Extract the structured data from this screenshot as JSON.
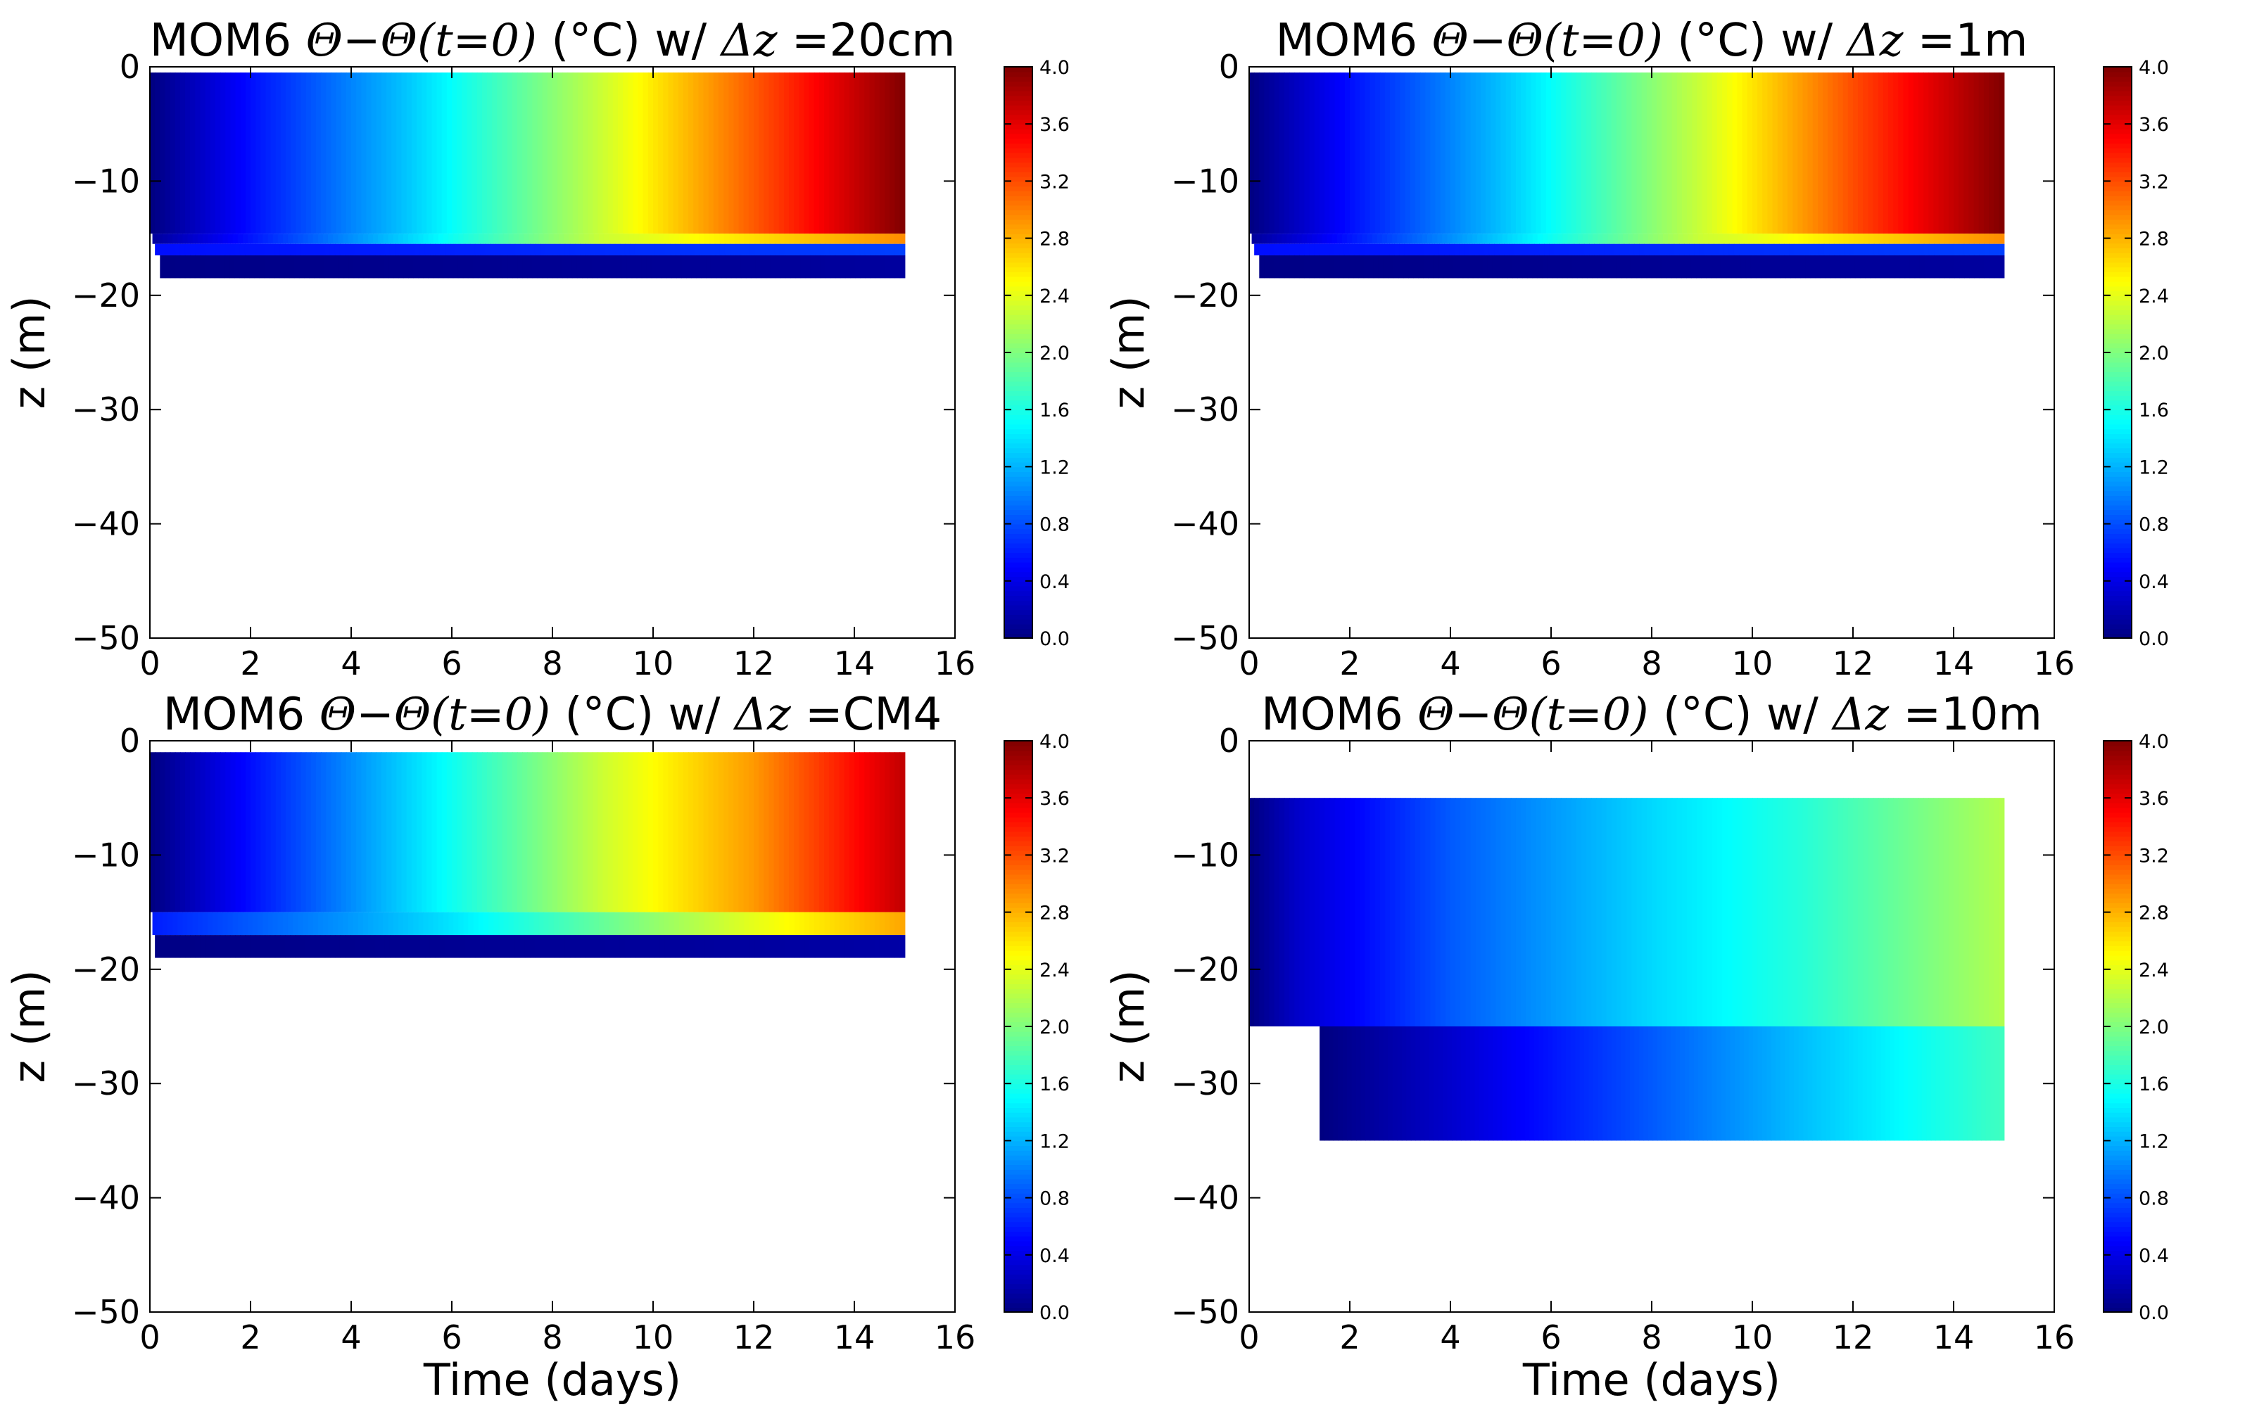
{
  "chart_data": [
    {
      "type": "heatmap",
      "title": {
        "prefix": "MOM6 ",
        "math": "Θ−Θ(t=0)",
        "suffix": " (°C) w/ ",
        "delta": "Δz",
        "res": " =20cm"
      },
      "xlabel": "",
      "ylabel": "z (m)",
      "xlim": [
        0,
        16
      ],
      "ylim": [
        -50,
        0
      ],
      "xticks": [
        "0",
        "2",
        "4",
        "6",
        "8",
        "10",
        "12",
        "14",
        "16"
      ],
      "yticks": [
        "0",
        "−10",
        "−20",
        "−30",
        "−40",
        "−50"
      ],
      "colorbar": {
        "colormap": "jet",
        "range": [
          0,
          4
        ],
        "ticks": [
          "0.0",
          "0.4",
          "0.8",
          "1.2",
          "1.6",
          "2.0",
          "2.4",
          "2.8",
          "3.2",
          "3.6",
          "4.0"
        ]
      },
      "t_end": 15,
      "layers": [
        {
          "z_top": -0.5,
          "z_bot": -14.6,
          "t_start": 0.0,
          "values_at_time": [
            [
              0,
              0.0
            ],
            [
              2,
              0.55
            ],
            [
              5,
              1.25
            ],
            [
              9,
              2.3
            ],
            [
              12,
              3.15
            ],
            [
              15,
              4.0
            ]
          ]
        },
        {
          "z_top": -14.6,
          "z_bot": -15.5,
          "t_start": 0.05,
          "values_at_time": [
            [
              0,
              0.1
            ],
            [
              5,
              1.3
            ],
            [
              9,
              2.3
            ],
            [
              15,
              2.95
            ]
          ]
        },
        {
          "z_top": -15.5,
          "z_bot": -16.5,
          "t_start": 0.1,
          "values_at_time": [
            [
              0,
              0.55
            ],
            [
              15,
              0.75
            ]
          ]
        },
        {
          "z_top": -16.5,
          "z_bot": -18.5,
          "t_start": 0.2,
          "values_at_time": [
            [
              0,
              0.02
            ],
            [
              15,
              0.12
            ]
          ]
        }
      ]
    },
    {
      "type": "heatmap",
      "title": {
        "prefix": "MOM6 ",
        "math": "Θ−Θ(t=0)",
        "suffix": " (°C) w/ ",
        "delta": "Δz",
        "res": " =1m"
      },
      "xlabel": "",
      "ylabel": "z (m)",
      "xlim": [
        0,
        16
      ],
      "ylim": [
        -50,
        0
      ],
      "xticks": [
        "0",
        "2",
        "4",
        "6",
        "8",
        "10",
        "12",
        "14",
        "16"
      ],
      "yticks": [
        "0",
        "−10",
        "−20",
        "−30",
        "−40",
        "−50"
      ],
      "colorbar": {
        "colormap": "jet",
        "range": [
          0,
          4
        ],
        "ticks": [
          "0.0",
          "0.4",
          "0.8",
          "1.2",
          "1.6",
          "2.0",
          "2.4",
          "2.8",
          "3.2",
          "3.6",
          "4.0"
        ]
      },
      "t_end": 15,
      "layers": [
        {
          "z_top": -0.5,
          "z_bot": -14.6,
          "t_start": 0.0,
          "values_at_time": [
            [
              0,
              0.0
            ],
            [
              2,
              0.55
            ],
            [
              5,
              1.25
            ],
            [
              9,
              2.3
            ],
            [
              12,
              3.2
            ],
            [
              15,
              4.0
            ]
          ]
        },
        {
          "z_top": -14.6,
          "z_bot": -15.5,
          "t_start": 0.05,
          "values_at_time": [
            [
              0,
              0.1
            ],
            [
              5,
              1.3
            ],
            [
              9,
              2.3
            ],
            [
              15,
              2.95
            ]
          ]
        },
        {
          "z_top": -15.5,
          "z_bot": -16.5,
          "t_start": 0.1,
          "values_at_time": [
            [
              0,
              0.55
            ],
            [
              15,
              0.75
            ]
          ]
        },
        {
          "z_top": -16.5,
          "z_bot": -18.5,
          "t_start": 0.2,
          "values_at_time": [
            [
              0,
              0.02
            ],
            [
              15,
              0.12
            ]
          ]
        }
      ]
    },
    {
      "type": "heatmap",
      "title": {
        "prefix": "MOM6 ",
        "math": "Θ−Θ(t=0)",
        "suffix": " (°C) w/ ",
        "delta": "Δz",
        "res": " =CM4"
      },
      "xlabel": "Time (days)",
      "ylabel": "z (m)",
      "xlim": [
        0,
        16
      ],
      "ylim": [
        -50,
        0
      ],
      "xticks": [
        "0",
        "2",
        "4",
        "6",
        "8",
        "10",
        "12",
        "14",
        "16"
      ],
      "yticks": [
        "0",
        "−10",
        "−20",
        "−30",
        "−40",
        "−50"
      ],
      "colorbar": {
        "colormap": "jet",
        "range": [
          0,
          4
        ],
        "ticks": [
          "0.0",
          "0.4",
          "0.8",
          "1.2",
          "1.6",
          "2.0",
          "2.4",
          "2.8",
          "3.2",
          "3.6",
          "4.0"
        ]
      },
      "t_end": 15,
      "layers": [
        {
          "z_top": -1.0,
          "z_bot": -15.0,
          "t_start": 0.0,
          "values_at_time": [
            [
              0,
              0.0
            ],
            [
              2,
              0.55
            ],
            [
              5,
              1.3
            ],
            [
              9,
              2.3
            ],
            [
              12,
              2.9
            ],
            [
              15,
              3.75
            ]
          ]
        },
        {
          "z_top": -15.0,
          "z_bot": -17.0,
          "t_start": 0.05,
          "values_at_time": [
            [
              0,
              0.6
            ],
            [
              4,
              1.1
            ],
            [
              6,
              1.4
            ],
            [
              9,
              1.9
            ],
            [
              12,
              2.4
            ],
            [
              15,
              2.85
            ]
          ]
        },
        {
          "z_top": -17.0,
          "z_bot": -19.0,
          "t_start": 0.1,
          "values_at_time": [
            [
              0,
              0.02
            ],
            [
              15,
              0.15
            ]
          ]
        }
      ]
    },
    {
      "type": "heatmap",
      "title": {
        "prefix": "MOM6 ",
        "math": "Θ−Θ(t=0)",
        "suffix": " (°C) w/ ",
        "delta": "Δz",
        "res": " =10m"
      },
      "xlabel": "Time (days)",
      "ylabel": "z (m)",
      "xlim": [
        0,
        16
      ],
      "ylim": [
        -50,
        0
      ],
      "xticks": [
        "0",
        "2",
        "4",
        "6",
        "8",
        "10",
        "12",
        "14",
        "16"
      ],
      "yticks": [
        "0",
        "−10",
        "−20",
        "−30",
        "−40",
        "−50"
      ],
      "colorbar": {
        "colormap": "jet",
        "range": [
          0,
          4
        ],
        "ticks": [
          "0.0",
          "0.4",
          "0.8",
          "1.2",
          "1.6",
          "2.0",
          "2.4",
          "2.8",
          "3.2",
          "3.6",
          "4.0"
        ]
      },
      "t_end": 15,
      "layers": [
        {
          "z_top": -5.0,
          "z_bot": -25.0,
          "t_start": 0.0,
          "values_at_time": [
            [
              0,
              0.0
            ],
            [
              1,
              0.3
            ],
            [
              4,
              0.85
            ],
            [
              8,
              1.35
            ],
            [
              11,
              1.65
            ],
            [
              15,
              2.2
            ]
          ]
        },
        {
          "z_top": -25.0,
          "z_bot": -35.0,
          "t_start": 1.4,
          "values_at_time": [
            [
              1.4,
              0.0
            ],
            [
              4,
              0.3
            ],
            [
              8,
              0.85
            ],
            [
              11,
              1.25
            ],
            [
              13,
              1.5
            ],
            [
              15,
              1.75
            ]
          ]
        }
      ]
    }
  ]
}
